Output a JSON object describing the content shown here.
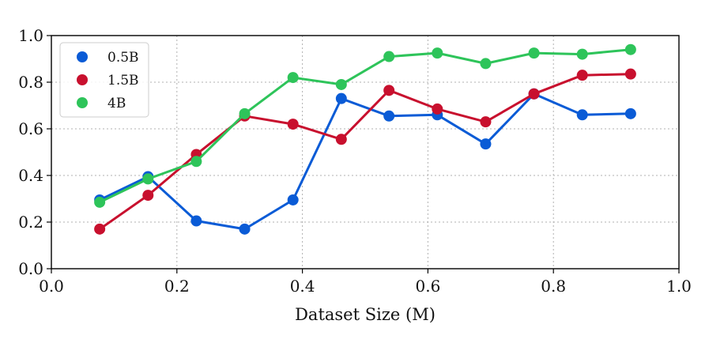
{
  "chart_data": {
    "type": "line",
    "title": "",
    "xlabel": "Dataset Size (M)",
    "ylabel": "",
    "xlim": [
      0.0,
      1.0
    ],
    "ylim": [
      0.0,
      1.0
    ],
    "xticks": [
      "0.0",
      "0.2",
      "0.4",
      "0.6",
      "0.8",
      "1.0"
    ],
    "yticks": [
      "0.0",
      "0.2",
      "0.4",
      "0.6",
      "0.8",
      "1.0"
    ],
    "grid": true,
    "legend_position": "top-left",
    "x": [
      0.077,
      0.154,
      0.231,
      0.308,
      0.385,
      0.462,
      0.538,
      0.615,
      0.692,
      0.769,
      0.846,
      0.923
    ],
    "series": [
      {
        "name": "0.5B",
        "color": "#0a5bd6",
        "values": [
          0.295,
          0.395,
          0.205,
          0.17,
          0.295,
          0.73,
          0.655,
          0.66,
          0.535,
          0.75,
          0.66,
          0.665
        ]
      },
      {
        "name": "1.5B",
        "color": "#c8102e",
        "values": [
          0.17,
          0.315,
          0.49,
          0.655,
          0.62,
          0.555,
          0.765,
          0.685,
          0.63,
          0.75,
          0.83,
          0.835
        ]
      },
      {
        "name": "4B",
        "color": "#2ec45a",
        "values": [
          0.285,
          0.385,
          0.46,
          0.665,
          0.82,
          0.79,
          0.91,
          0.925,
          0.88,
          0.925,
          0.92,
          0.94
        ]
      }
    ]
  }
}
